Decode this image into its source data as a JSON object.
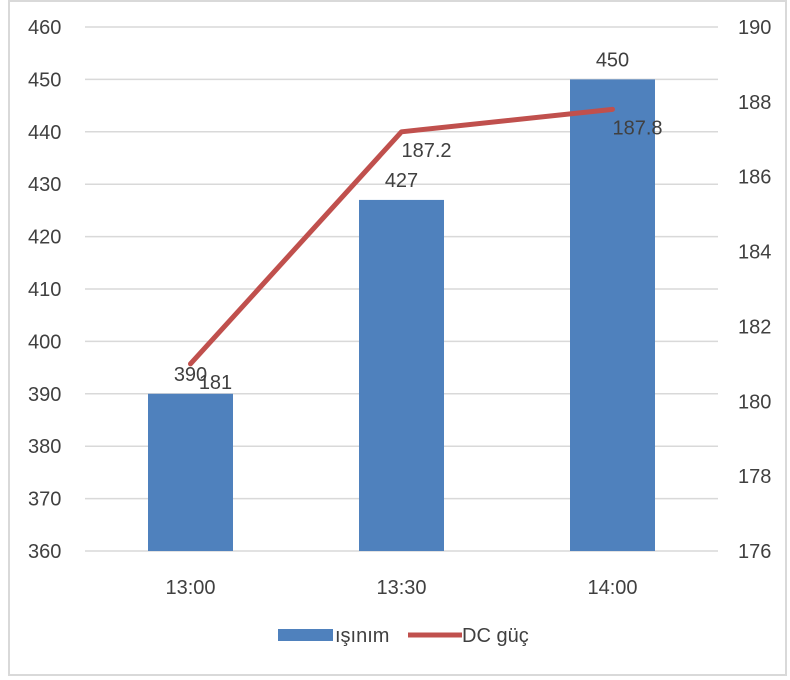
{
  "chart_data": {
    "type": "bar",
    "categories": [
      "13:00",
      "13:30",
      "14:00"
    ],
    "series": [
      {
        "name": "ışınım",
        "type": "bar",
        "axis": "left",
        "values": [
          390,
          427,
          450
        ],
        "color": "#4f81bd"
      },
      {
        "name": "DC güç",
        "type": "line",
        "axis": "right",
        "values": [
          181,
          187.2,
          187.8
        ],
        "color": "#c0504d"
      }
    ],
    "y_left": {
      "min": 360,
      "max": 460,
      "step": 10,
      "ticks": [
        "360",
        "370",
        "380",
        "390",
        "400",
        "410",
        "420",
        "430",
        "440",
        "450",
        "460"
      ]
    },
    "y_right": {
      "min": 176,
      "max": 190,
      "step": 2,
      "ticks": [
        "176",
        "178",
        "180",
        "182",
        "184",
        "186",
        "188",
        "190"
      ]
    },
    "data_labels": {
      "bar": [
        "390",
        "427",
        "450"
      ],
      "line": [
        "181",
        "187.2",
        "187.8"
      ]
    },
    "grid": true,
    "legend": {
      "position": "bottom",
      "items": [
        "ışınım",
        "DC güç"
      ]
    },
    "title": "",
    "xlabel": "",
    "ylabel": ""
  }
}
